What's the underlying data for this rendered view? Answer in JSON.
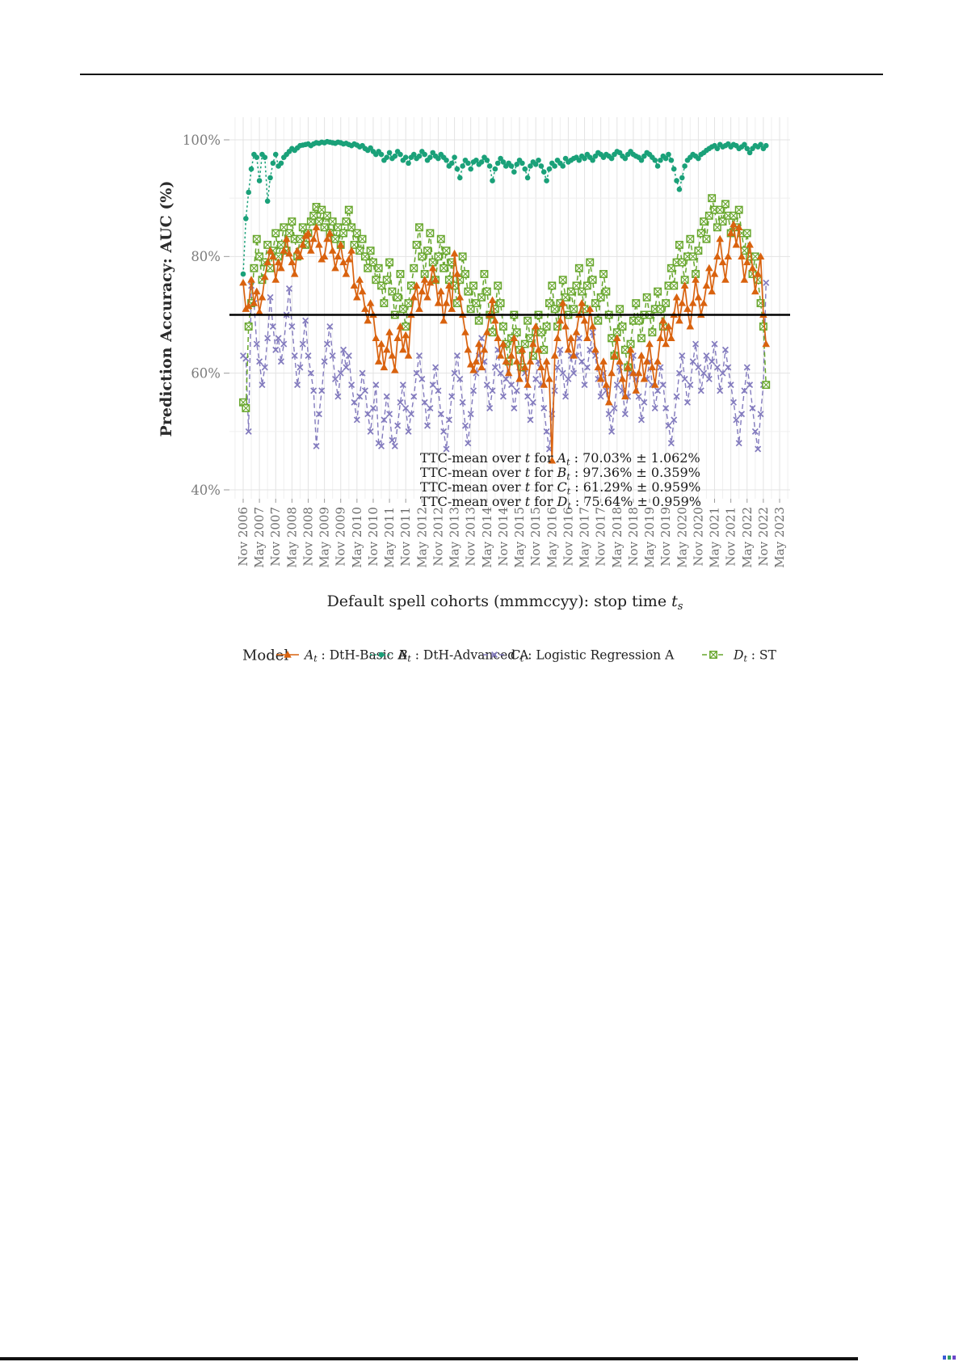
{
  "page": {
    "accent_colors": {
      "orange": "#d9620e",
      "teal": "#1aa179",
      "purple": "#837bbe",
      "green": "#67a62c"
    }
  },
  "chart_data": {
    "type": "line",
    "title": "",
    "xlabel": "Default spell cohorts (mmmccyy): stop time t_s",
    "ylabel": "Prediction Accuracy: AUC (%)",
    "x_start": "Nov 2006",
    "x_frequency": "monthly",
    "x_tick_step_months": 6,
    "x_tick_labels": [
      "Nov 2006",
      "May 2007",
      "Nov 2007",
      "May 2008",
      "Nov 2008",
      "May 2009",
      "Nov 2009",
      "May 2010",
      "Nov 2010",
      "May 2011",
      "Nov 2011",
      "May 2012",
      "Nov 2012",
      "May 2013",
      "Nov 2013",
      "May 2014",
      "Nov 2014",
      "May 2015",
      "Nov 2015",
      "May 2016",
      "Nov 2016",
      "May 2017",
      "Nov 2017",
      "May 2018",
      "Nov 2018",
      "May 2019",
      "Nov 2019",
      "May 2020",
      "Nov 2020",
      "May 2021",
      "Nov 2021",
      "May 2022",
      "Nov 2022",
      "May 2023"
    ],
    "y_ticks": [
      40,
      60,
      80,
      100
    ],
    "y_tick_labels": [
      "40%",
      "60%",
      "80%",
      "100%"
    ],
    "y_minor_gridlines": [
      50,
      70,
      90
    ],
    "ylim": [
      38.5,
      104
    ],
    "grid": true,
    "reference_line_y": 70,
    "reference_line_color": "#000000",
    "legend_position": "bottom",
    "series": [
      {
        "name": "A_t : DtH-Basic A",
        "var": "A",
        "sub": "t",
        "label": "DtH-Basic A",
        "marker": "triangle",
        "line": "solid",
        "color": "#d9620e",
        "values": [
          75.5,
          71,
          71.5,
          76,
          72,
          74,
          70.5,
          73,
          76.5,
          79,
          81,
          80,
          76,
          79,
          78,
          81,
          83,
          80.5,
          79,
          77,
          81,
          80,
          82,
          83.5,
          84,
          81,
          83,
          85,
          82,
          79.5,
          80,
          83,
          84,
          81,
          78,
          80,
          82,
          79,
          77,
          79.5,
          81,
          75,
          73,
          76,
          74,
          71,
          69,
          72,
          70,
          66,
          62,
          65,
          61,
          64,
          67,
          63,
          60.5,
          66,
          68,
          64,
          66.5,
          63,
          70,
          73,
          75,
          71,
          74,
          76,
          73,
          75.5,
          78,
          76,
          72,
          74,
          69,
          72,
          75,
          71,
          80.5,
          77,
          73,
          70,
          67,
          64,
          61.5,
          60.5,
          62,
          65,
          61,
          64,
          67,
          70,
          72.5,
          69,
          66,
          63,
          65,
          62,
          60,
          63,
          66,
          62,
          59,
          64,
          61,
          58,
          62,
          65,
          68,
          64,
          61,
          58,
          62,
          59,
          45,
          63,
          66,
          69,
          72,
          68,
          64,
          66,
          63,
          67,
          70,
          72,
          69,
          66,
          71,
          68,
          64,
          61,
          59,
          62,
          58,
          55,
          60,
          63,
          66,
          62,
          59,
          56,
          61,
          64,
          60,
          57,
          60,
          63,
          59,
          62,
          65,
          61,
          58,
          62,
          66,
          69,
          65,
          68,
          66,
          70,
          73,
          69,
          72,
          75,
          71,
          68,
          72,
          76,
          73,
          70,
          72,
          75,
          78,
          74,
          77,
          80,
          83,
          79,
          76,
          80,
          84,
          85.5,
          82,
          85,
          80,
          76,
          79,
          82,
          78,
          74,
          77,
          80,
          70,
          65
        ]
      },
      {
        "name": "B_t : DtH-Advanced A",
        "var": "B",
        "sub": "t",
        "label": "DtH-Advanced A",
        "marker": "circle",
        "line": "dotted",
        "color": "#1aa179",
        "values": [
          77,
          86.5,
          91,
          95,
          97.5,
          97,
          93,
          97.5,
          97,
          89.5,
          93.5,
          96,
          97.5,
          95.5,
          96,
          97,
          97.5,
          98,
          98.5,
          98.2,
          98.6,
          99,
          99.1,
          99.2,
          99.3,
          99,
          99.3,
          99.5,
          99.4,
          99.6,
          99.5,
          99.7,
          99.6,
          99.5,
          99.4,
          99.6,
          99.5,
          99.3,
          99.4,
          99.2,
          99,
          99.3,
          99.1,
          98.8,
          99,
          98.5,
          98.2,
          98.6,
          98,
          97.5,
          98,
          97.5,
          96.5,
          97,
          97.8,
          96.8,
          97.2,
          98,
          97.5,
          96.5,
          97,
          96,
          97,
          97.5,
          96.8,
          97.2,
          98,
          97.5,
          96.5,
          97,
          97.8,
          97.2,
          96.8,
          97.5,
          97,
          96.5,
          95.5,
          96,
          97,
          95,
          93.5,
          95.5,
          96.5,
          96,
          95,
          96.2,
          96.5,
          95.8,
          96.2,
          97,
          96.5,
          95.5,
          93,
          95,
          96,
          96.8,
          96.2,
          95.5,
          96,
          95.5,
          94.5,
          95.8,
          96.5,
          96,
          95,
          93.5,
          95.5,
          96.2,
          95.8,
          96.5,
          95.5,
          94.5,
          93,
          95,
          96,
          95.5,
          96.5,
          96,
          95.5,
          96.8,
          96.2,
          96.5,
          96.8,
          97,
          96.5,
          97.2,
          96.8,
          97.5,
          97,
          96.5,
          97.2,
          97.8,
          97.5,
          97,
          97.5,
          97.2,
          96.8,
          97.5,
          98,
          97.8,
          97.2,
          96.8,
          97.5,
          98,
          97.5,
          97.2,
          97,
          96.5,
          97.2,
          97.8,
          97.5,
          97,
          96.5,
          95.5,
          96.5,
          97.2,
          96.8,
          97.5,
          96.5,
          95,
          93,
          91.5,
          93.5,
          95.5,
          96.5,
          97,
          97.5,
          97.2,
          96.8,
          97.5,
          97.8,
          98.2,
          98.5,
          98.8,
          99,
          98.5,
          99.2,
          98.8,
          99,
          99.3,
          98.8,
          99.2,
          99,
          98.5,
          98.8,
          99.2,
          98.5,
          97.8,
          98.5,
          99,
          98.8,
          99.2,
          98.5,
          99
        ]
      },
      {
        "name": "C_t : Logistic Regression A",
        "var": "C",
        "sub": "t",
        "label": "Logistic Regression A",
        "marker": "x",
        "line": "dashed",
        "color": "#837bbe",
        "values": [
          63,
          62.5,
          50,
          75,
          72,
          65,
          62,
          58,
          61,
          66,
          73,
          68,
          64,
          66,
          62,
          65,
          70,
          74.5,
          68,
          63,
          58,
          61,
          65,
          69,
          63,
          60,
          57,
          47.5,
          53,
          57,
          62,
          65,
          68,
          63,
          59,
          56,
          60,
          64,
          61,
          63,
          58,
          55,
          52,
          56,
          60,
          57,
          53,
          50,
          54,
          58,
          48,
          47.5,
          52,
          56,
          53,
          48.5,
          47.5,
          51,
          55,
          58,
          54,
          50,
          53,
          56,
          60,
          63,
          59,
          55,
          51,
          54,
          58,
          61,
          57,
          53,
          50,
          47,
          52,
          56,
          60,
          63,
          59,
          55,
          51,
          48,
          53,
          57,
          60,
          63,
          66,
          62,
          58,
          54,
          57,
          61,
          64,
          60,
          56,
          59,
          62,
          58,
          54,
          57,
          61,
          64,
          60,
          56,
          52,
          55,
          59,
          62,
          58,
          54,
          50,
          47,
          53,
          57,
          61,
          64,
          60,
          56,
          59,
          63,
          60,
          63,
          66,
          62,
          58,
          61,
          64,
          67,
          63,
          59,
          56,
          60,
          57,
          53,
          50,
          54,
          58,
          61,
          57,
          53,
          56,
          60,
          63,
          59,
          56,
          52,
          55,
          59,
          62,
          58,
          54,
          57,
          61,
          58,
          54,
          51,
          48,
          52,
          56,
          60,
          63,
          59,
          55,
          58,
          62,
          65,
          61,
          57,
          60,
          63,
          59,
          62,
          65,
          61,
          57,
          60,
          64,
          61,
          58,
          55,
          52,
          48,
          53,
          57,
          61,
          58,
          54,
          50,
          47,
          53,
          58,
          75.5
        ]
      },
      {
        "name": "D_t : ST",
        "var": "D",
        "sub": "t",
        "label": "ST",
        "marker": "square-x",
        "line": "dashed",
        "color": "#67a62c",
        "values": [
          55,
          54,
          68,
          72,
          78,
          83,
          80,
          76,
          79,
          82,
          78,
          81,
          84,
          80,
          82,
          85,
          81,
          84,
          86,
          83,
          80,
          83,
          85,
          82,
          84,
          86,
          87,
          88.5,
          86,
          88,
          85,
          87,
          84,
          86,
          83,
          85,
          82,
          84,
          86,
          88,
          85,
          82,
          84,
          81,
          83,
          80,
          78,
          81,
          79,
          76,
          78,
          75,
          72,
          76,
          79,
          74,
          70,
          73,
          77,
          71,
          68,
          72,
          75,
          78,
          82,
          85,
          80,
          77,
          81,
          84,
          79,
          76,
          80,
          83,
          78,
          81,
          76,
          79,
          75,
          72,
          76,
          80,
          77,
          74,
          71,
          75,
          72,
          69,
          73,
          77,
          74,
          70,
          67,
          71,
          75,
          72,
          68,
          65,
          62,
          66,
          70,
          67,
          64,
          61,
          65,
          69,
          66,
          63,
          67,
          70,
          67,
          64,
          68,
          72,
          75,
          71,
          68,
          72,
          76,
          73,
          70,
          74,
          71,
          75,
          78,
          74,
          71,
          75,
          79,
          76,
          72,
          69,
          73,
          77,
          74,
          70,
          66,
          63,
          67,
          71,
          68,
          64,
          61,
          65,
          69,
          72,
          69,
          66,
          70,
          73,
          70,
          67,
          71,
          74,
          71,
          68,
          72,
          75,
          78,
          75,
          79,
          82,
          79,
          76,
          80,
          83,
          80,
          77,
          81,
          84,
          86,
          83,
          87,
          90,
          88,
          85,
          88,
          86,
          89,
          87,
          84,
          87,
          85,
          88,
          84,
          81,
          84,
          80,
          77,
          80,
          76,
          72,
          68,
          58
        ]
      }
    ],
    "annotation": {
      "lead": "TTC-mean over",
      "t_symbol": "t",
      "for_word": "for",
      "separator": ":",
      "entries": [
        {
          "var": "A",
          "sub": "t",
          "value": "70.03% ± 1.062%"
        },
        {
          "var": "B",
          "sub": "t",
          "value": "97.36% ± 0.359%"
        },
        {
          "var": "C",
          "sub": "t",
          "value": "61.29% ± 0.959%"
        },
        {
          "var": "D",
          "sub": "t",
          "value": "75.64% ± 0.959%"
        }
      ]
    },
    "axis_titles": {
      "y": "Prediction Accuracy: AUC (%)",
      "x_main": "Default spell cohorts (mmmccyy): stop time",
      "x_var": "t",
      "x_sub": "s"
    },
    "legend_title": "Model"
  }
}
